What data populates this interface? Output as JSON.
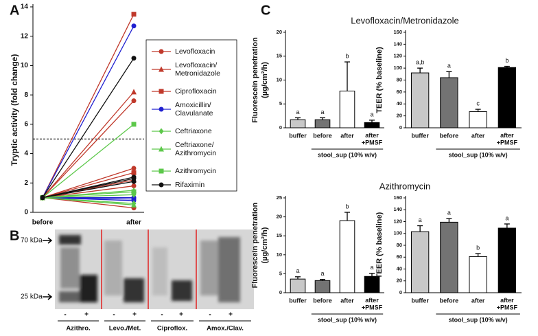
{
  "panel_labels": [
    "A",
    "B",
    "C"
  ],
  "blot": {
    "markers": [
      "70 kDa",
      "25 kDa"
    ],
    "lanes": [
      "-",
      "+",
      "-",
      "+",
      "-",
      "+",
      "-",
      "+"
    ],
    "groups": [
      "Azithro.",
      "Levo./Met.",
      "Ciproflox.",
      "Amox./Clav."
    ]
  },
  "chart_data": [
    {
      "type": "line",
      "ylabel": "Tryptic activity (fold change)",
      "categories": [
        "before",
        "after"
      ],
      "ylim": [
        0,
        14
      ],
      "yticks": [
        0,
        2,
        4,
        6,
        8,
        10,
        12,
        14
      ],
      "reference_line": 5,
      "series": [
        {
          "name": "Levofloxacin",
          "color": "#c0392b",
          "marker": "circle",
          "values": [
            [
              1,
              7.6
            ],
            [
              1,
              3.0
            ],
            [
              1,
              1.8
            ],
            [
              1,
              0.3
            ]
          ]
        },
        {
          "name": "Levofloxacin/\nMetronidazole",
          "color": "#c0392b",
          "marker": "triangle",
          "values": [
            [
              1,
              8.2
            ],
            [
              1,
              2.2
            ]
          ]
        },
        {
          "name": "Ciprofloxacin",
          "color": "#c0392b",
          "marker": "square",
          "values": [
            [
              1,
              13.5
            ],
            [
              1,
              2.7
            ]
          ]
        },
        {
          "name": "Amoxicillin/\nClavulanate",
          "color": "#2020d0",
          "marker": "circle",
          "values": [
            [
              1,
              12.7
            ],
            [
              1,
              1.0
            ],
            [
              1,
              0.9
            ],
            [
              1,
              0.8
            ]
          ]
        },
        {
          "name": "Ceftriaxone",
          "color": "#5cc84a",
          "marker": "diamond",
          "values": [
            [
              1,
              0.6
            ],
            [
              1,
              1.2
            ]
          ]
        },
        {
          "name": "Ceftriaxone/\nAzithromycin",
          "color": "#5cc84a",
          "marker": "triangle",
          "values": [
            [
              1,
              1.5
            ],
            [
              1,
              0.5
            ]
          ]
        },
        {
          "name": "Azithromycin",
          "color": "#5cc84a",
          "marker": "square",
          "values": [
            [
              1,
              6.0
            ],
            [
              1,
              1.4
            ]
          ]
        },
        {
          "name": "Rifaximin",
          "color": "#111111",
          "marker": "circle",
          "values": [
            [
              1,
              10.5
            ],
            [
              1,
              2.4
            ],
            [
              1,
              2.3
            ],
            [
              1,
              2.1
            ]
          ]
        }
      ]
    },
    {
      "type": "bar",
      "title": "Levofloxacin/Metronidazole",
      "ylabel": [
        "Fluorescein penetration",
        "(µg/cm²/h)"
      ],
      "categories": [
        "buffer",
        "before",
        "after",
        "after\n+PMSF"
      ],
      "group_label": "stool_sup (10% w/v)",
      "values": [
        1.7,
        1.7,
        7.7,
        1.1
      ],
      "errors": [
        0.4,
        0.4,
        6.1,
        0.5
      ],
      "annotations": [
        "a",
        "a",
        "b",
        "a"
      ],
      "colors": [
        "#c8c8c8",
        "#737373",
        "#ffffff",
        "#000000"
      ],
      "ylim": [
        0,
        20
      ],
      "yticks": [
        0,
        5,
        10,
        15,
        20
      ]
    },
    {
      "type": "bar",
      "ylabel": [
        "TEER (% baseline)"
      ],
      "categories": [
        "buffer",
        "before",
        "after",
        "after\n+PMSF"
      ],
      "group_label": "stool_sup (10% w/v)",
      "values": [
        92,
        84,
        27,
        101
      ],
      "errors": [
        8,
        10,
        4,
        2
      ],
      "annotations": [
        "a,b",
        "a",
        "c",
        "b"
      ],
      "colors": [
        "#c8c8c8",
        "#737373",
        "#ffffff",
        "#000000"
      ],
      "ylim": [
        0,
        160
      ],
      "yticks": [
        0,
        20,
        40,
        60,
        80,
        100,
        120,
        140,
        160
      ]
    },
    {
      "type": "bar",
      "title": "Azithromycin",
      "ylabel": [
        "Fluorescein penetration",
        "(µg/cm²/h)"
      ],
      "categories": [
        "buffer",
        "before",
        "after",
        "after\n+PMSF"
      ],
      "group_label": "stool_sup (10% w/v)",
      "values": [
        3.6,
        3.2,
        19,
        4.3
      ],
      "errors": [
        0.6,
        0.3,
        2.2,
        0.8
      ],
      "annotations": [
        "a",
        "a",
        "b",
        "a"
      ],
      "colors": [
        "#c8c8c8",
        "#737373",
        "#ffffff",
        "#000000"
      ],
      "ylim": [
        0,
        25
      ],
      "yticks": [
        0,
        5,
        10,
        15,
        20,
        25
      ]
    },
    {
      "type": "bar",
      "ylabel": [
        "TEER (% baseline)"
      ],
      "categories": [
        "buffer",
        "before",
        "after",
        "after\n+PMSF"
      ],
      "group_label": "stool_sup (10% w/v)",
      "values": [
        103,
        119,
        61,
        109
      ],
      "errors": [
        10,
        6,
        5,
        7
      ],
      "annotations": [
        "a",
        "a",
        "b",
        "a"
      ],
      "colors": [
        "#c8c8c8",
        "#737373",
        "#ffffff",
        "#000000"
      ],
      "ylim": [
        0,
        160
      ],
      "yticks": [
        0,
        20,
        40,
        60,
        80,
        100,
        120,
        140,
        160
      ]
    }
  ]
}
